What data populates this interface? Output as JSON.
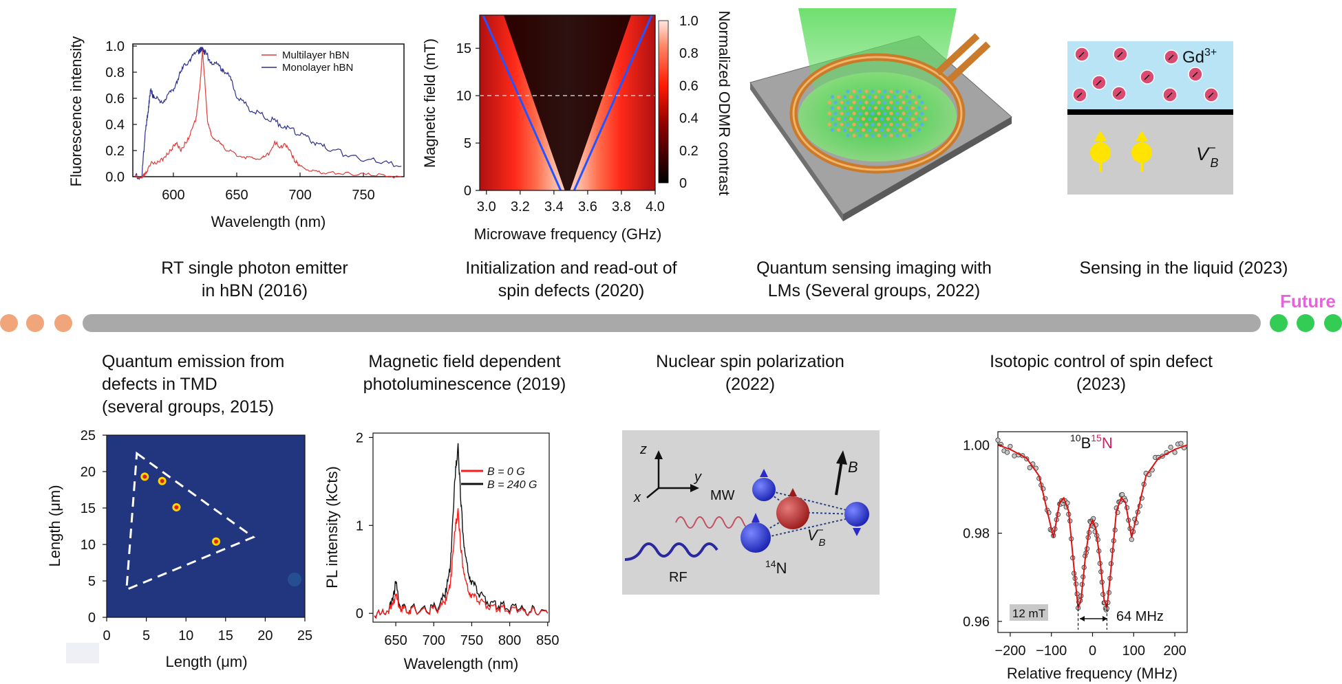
{
  "colors": {
    "past_dot": "#f0a57a",
    "future_dot": "#33cc55",
    "future_label": "#e266d8",
    "timeline": "#a9a9a9",
    "multilayer": "#e03a3a",
    "monolayer": "#2a2f8c",
    "odmr_line": "#2255ff",
    "isotope_label": "#d81b60"
  },
  "timeline": {
    "future_label": "Future"
  },
  "top_captions": [
    {
      "line1": "RT single photon emitter",
      "line2": "in hBN (2016)"
    },
    {
      "line1": "Initialization and read-out of",
      "line2": "spin defects (2020)"
    },
    {
      "line1": "Quantum sensing imaging with",
      "line2": "LMs (Several groups, 2022)"
    },
    {
      "line1": "Sensing in the liquid (2023)"
    }
  ],
  "bottom_captions": [
    {
      "line1": "Quantum emission from",
      "line2": "defects in TMD",
      "line3": "(several groups, 2015)"
    },
    {
      "line1": "Magnetic field dependent",
      "line2": "photoluminescence (2019)"
    },
    {
      "line1": "Nuclear spin polarization",
      "line2": "(2022)"
    },
    {
      "line1": "Isotopic control of spin defect",
      "line2": "(2023)"
    }
  ],
  "chart_data": [
    {
      "id": "hbn-fluorescence",
      "type": "line",
      "xlabel": "Wavelength (nm)",
      "ylabel": "Fluorescence intensity",
      "xlim": [
        568,
        782
      ],
      "ylim": [
        0,
        1.0
      ],
      "xticks": [
        "600",
        "650",
        "700",
        "750"
      ],
      "yticks": [
        "0.0",
        "0.2",
        "0.4",
        "0.6",
        "0.8",
        "1.0"
      ],
      "legend": [
        "Multilayer hBN",
        "Monolayer hBN"
      ],
      "series": [
        {
          "name": "Multilayer hBN",
          "x": [
            570,
            575,
            578,
            582,
            590,
            598,
            602,
            606,
            612,
            618,
            621,
            623,
            625,
            627,
            630,
            635,
            640,
            650,
            660,
            670,
            675,
            680,
            684,
            688,
            692,
            696,
            700,
            710,
            720,
            740,
            760,
            780
          ],
          "y": [
            0.0,
            0.0,
            0.02,
            0.1,
            0.12,
            0.2,
            0.26,
            0.2,
            0.3,
            0.45,
            0.7,
            0.97,
            0.7,
            0.42,
            0.32,
            0.27,
            0.22,
            0.17,
            0.14,
            0.14,
            0.17,
            0.27,
            0.22,
            0.25,
            0.2,
            0.12,
            0.08,
            0.04,
            0.03,
            0.02,
            0.01,
            0.0
          ]
        },
        {
          "name": "Monolayer hBN",
          "x": [
            570,
            575,
            578,
            580,
            582,
            585,
            590,
            595,
            600,
            605,
            610,
            615,
            620,
            623,
            625,
            630,
            635,
            640,
            645,
            650,
            660,
            670,
            680,
            690,
            700,
            710,
            720,
            740,
            760,
            780
          ],
          "y": [
            0.0,
            0.0,
            0.35,
            0.5,
            0.66,
            0.6,
            0.58,
            0.6,
            0.68,
            0.78,
            0.87,
            0.92,
            0.96,
            0.98,
            0.95,
            0.88,
            0.85,
            0.82,
            0.75,
            0.62,
            0.52,
            0.47,
            0.42,
            0.38,
            0.32,
            0.27,
            0.22,
            0.16,
            0.12,
            0.08
          ]
        }
      ]
    },
    {
      "id": "odmr-map",
      "type": "heatmap",
      "xlabel": "Microwave frequency (GHz)",
      "ylabel": "Magnetic field (mT)",
      "colorbar_label": "Normalized ODMR contrast",
      "xlim": [
        2.96,
        4.0
      ],
      "ylim": [
        0,
        18.5
      ],
      "xticks": [
        "3.0",
        "3.2",
        "3.4",
        "3.6",
        "3.8",
        "4.0"
      ],
      "yticks": [
        "0",
        "5",
        "10",
        "15"
      ],
      "colorbar_ticks": [
        "0",
        "0.2",
        "0.4",
        "0.6",
        "0.8",
        "1.0"
      ],
      "dashed_line_y": 10,
      "branches": [
        {
          "name": "lower",
          "x": [
            3.44,
            2.98
          ],
          "y": [
            0,
            18.5
          ]
        },
        {
          "name": "upper",
          "x": [
            3.52,
            3.98
          ],
          "y": [
            0,
            18.5
          ]
        }
      ]
    },
    {
      "id": "tmd-map",
      "type": "heatmap",
      "xlabel": "Length (μm)",
      "ylabel": "Length (μm)",
      "xlim": [
        0,
        25
      ],
      "ylim": [
        0,
        25
      ],
      "xticks": [
        "0",
        "5",
        "10",
        "15",
        "20",
        "25"
      ],
      "yticks": [
        "0",
        "5",
        "10",
        "15",
        "20",
        "25"
      ],
      "triangle": {
        "x": [
          3.8,
          18.5,
          2.5
        ],
        "y": [
          22.5,
          11,
          3.8
        ]
      },
      "emitters": {
        "x": [
          4.8,
          7.0,
          8.8,
          13.8
        ],
        "y": [
          19.3,
          18.7,
          15.1,
          10.4
        ]
      }
    },
    {
      "id": "pl-field",
      "type": "line",
      "xlabel": "Wavelength (nm)",
      "ylabel": "PL intensity (kCts)",
      "xlim": [
        620,
        852
      ],
      "ylim": [
        -0.1,
        2.05
      ],
      "xticks": [
        "650",
        "700",
        "750",
        "800",
        "850"
      ],
      "yticks": [
        "0",
        "1",
        "2"
      ],
      "legend": [
        "B = 0 G",
        "B = 240 G"
      ],
      "series": [
        {
          "name": "B = 0 G",
          "x": [
            622,
            640,
            646,
            650,
            655,
            660,
            670,
            690,
            705,
            715,
            722,
            728,
            732,
            736,
            740,
            745,
            750,
            760,
            775,
            790,
            810,
            830,
            850
          ],
          "y": [
            0.0,
            0.02,
            0.12,
            0.2,
            0.08,
            0.05,
            0.04,
            0.02,
            0.05,
            0.12,
            0.35,
            0.95,
            1.15,
            0.72,
            0.42,
            0.28,
            0.2,
            0.14,
            0.08,
            0.05,
            0.03,
            0.02,
            0.0
          ]
        },
        {
          "name": "B = 240 G",
          "x": [
            622,
            640,
            646,
            650,
            655,
            660,
            670,
            690,
            705,
            715,
            722,
            728,
            732,
            736,
            740,
            745,
            750,
            760,
            775,
            790,
            810,
            830,
            850
          ],
          "y": [
            0.0,
            0.02,
            0.18,
            0.35,
            0.1,
            0.06,
            0.05,
            0.03,
            0.07,
            0.2,
            0.55,
            1.55,
            1.88,
            1.25,
            0.72,
            0.5,
            0.35,
            0.22,
            0.12,
            0.08,
            0.05,
            0.03,
            0.0
          ]
        }
      ]
    },
    {
      "id": "isotope-odmr",
      "type": "line",
      "xlabel": "Relative frequency (MHz)",
      "xlim": [
        -230,
        230
      ],
      "ylim": [
        0.9575,
        1.003
      ],
      "xticks": [
        "−200",
        "−100",
        "0",
        "100",
        "200"
      ],
      "yticks": [
        "0.96",
        "0.98",
        "1.00"
      ],
      "isotope_label": {
        "mass1": "10",
        "element1": "B",
        "mass2": "15",
        "element2": "N"
      },
      "field_label": "12 mT",
      "splitting_label": "64 MHz",
      "series": [
        {
          "name": "fit",
          "x": [
            -230,
            -200,
            -160,
            -130,
            -110,
            -95,
            -80,
            -70,
            -58,
            -45,
            -35,
            -28,
            -18,
            -8,
            0,
            8,
            18,
            28,
            35,
            45,
            58,
            70,
            80,
            95,
            110,
            130,
            160,
            200,
            230
          ],
          "y": [
            1.0,
            0.999,
            0.997,
            0.993,
            0.985,
            0.979,
            0.987,
            0.988,
            0.985,
            0.972,
            0.963,
            0.965,
            0.974,
            0.981,
            0.983,
            0.981,
            0.974,
            0.965,
            0.963,
            0.972,
            0.985,
            0.988,
            0.987,
            0.979,
            0.985,
            0.993,
            0.997,
            0.999,
            1.0
          ]
        }
      ]
    }
  ],
  "diagrams": {
    "liquid": {
      "ion_label": "Gd",
      "ion_charge": "3+",
      "defect_label": "V",
      "defect_sub": "B",
      "defect_sup": "−"
    },
    "nuclear": {
      "axis_z": "z",
      "axis_y": "y",
      "axis_x": "x",
      "mw_label": "MW",
      "rf_label": "RF",
      "b_label": "B",
      "defect_label": "V",
      "defect_sub": "B",
      "defect_sup": "−",
      "nucleus_mass": "14",
      "nucleus_el": "N"
    }
  }
}
